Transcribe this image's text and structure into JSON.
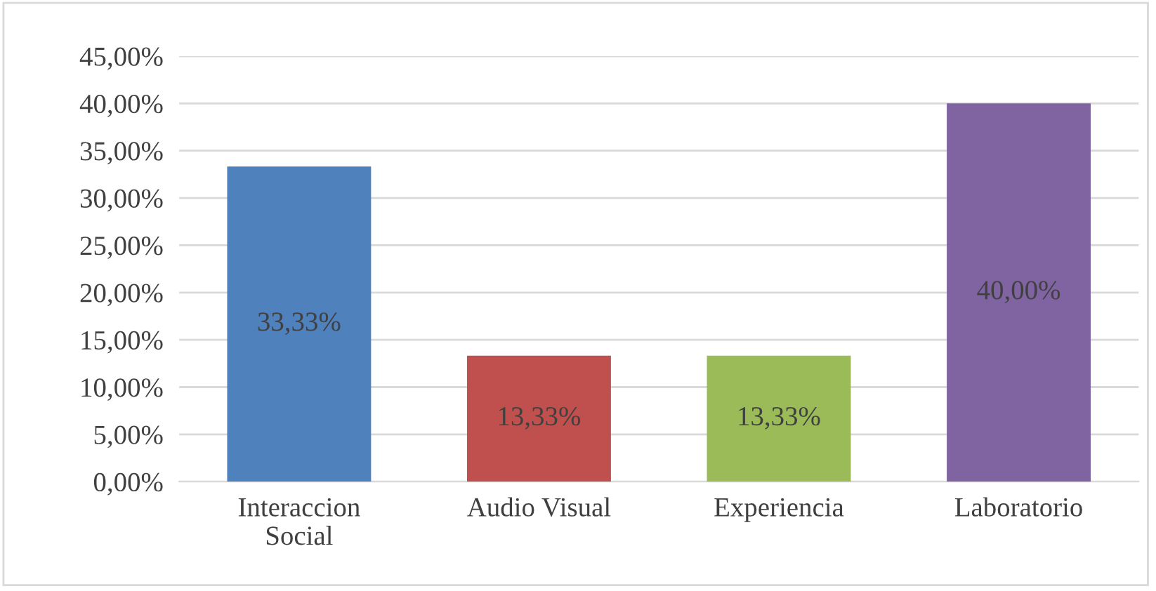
{
  "chart_data": {
    "type": "bar",
    "categories": [
      "Interaccion\nSocial",
      "Audio Visual",
      "Experiencia",
      "Laboratorio"
    ],
    "values": [
      33.33,
      13.33,
      13.33,
      40.0
    ],
    "colors": [
      "#4f81bd",
      "#c0504d",
      "#9bbb59",
      "#8064a2"
    ],
    "value_labels": [
      "33,33%",
      "13,33%",
      "13,33%",
      "40,00%"
    ],
    "ylim": [
      0,
      45
    ],
    "yticks": [
      {
        "value": 0,
        "label": "0,00%"
      },
      {
        "value": 5,
        "label": "5,00%"
      },
      {
        "value": 10,
        "label": "10,00%"
      },
      {
        "value": 15,
        "label": "15,00%"
      },
      {
        "value": 20,
        "label": "20,00%"
      },
      {
        "value": 25,
        "label": "25,00%"
      },
      {
        "value": 30,
        "label": "30,00%"
      },
      {
        "value": 35,
        "label": "35,00%"
      },
      {
        "value": 40,
        "label": "40,00%"
      },
      {
        "value": 45,
        "label": "45,00%"
      }
    ],
    "grid": "y"
  }
}
